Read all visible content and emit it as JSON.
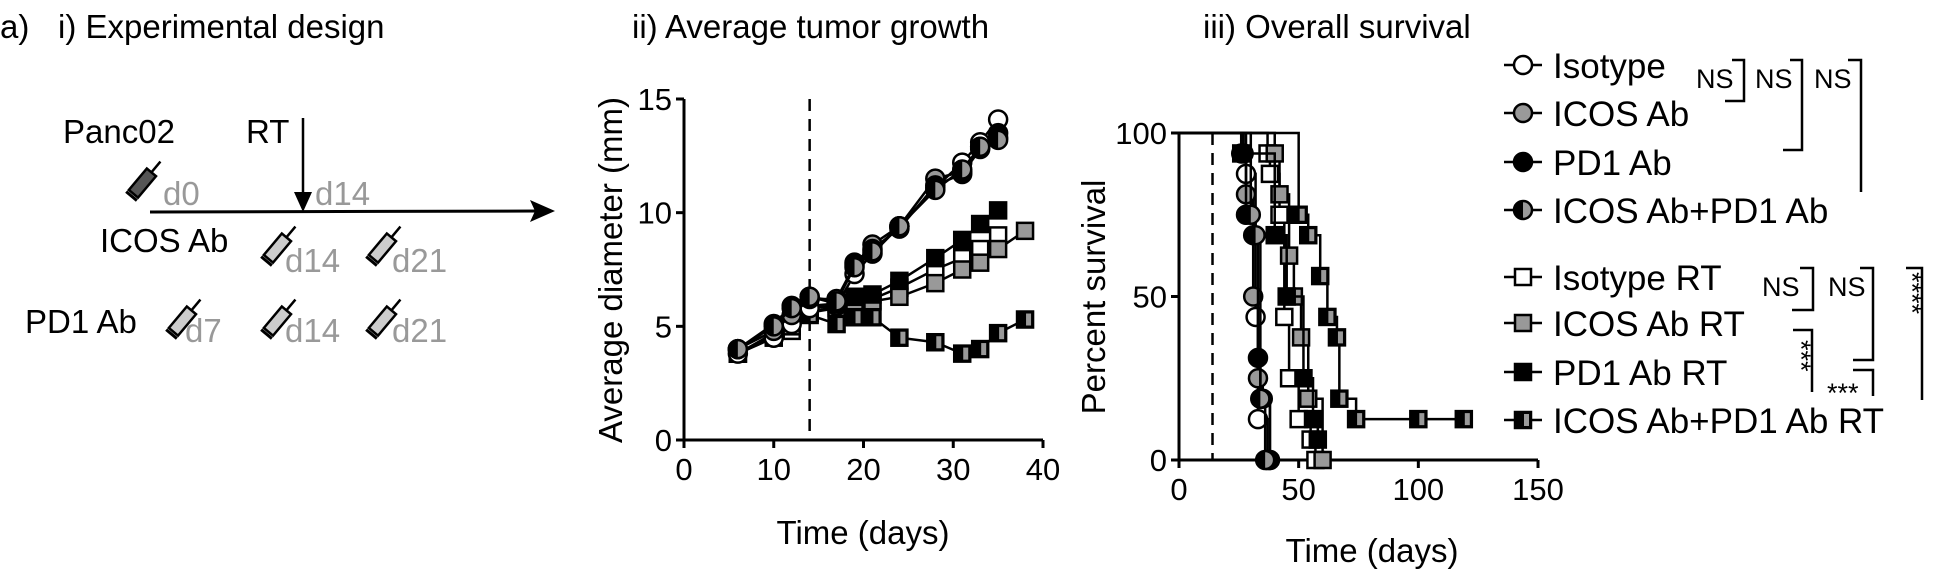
{
  "panel_label": "a)",
  "design": {
    "title": "i) Experimental design",
    "panc02": "Panc02",
    "rt": "RT",
    "d0": "d0",
    "d14_rt": "d14",
    "icos_label": "ICOS Ab",
    "icos_days": [
      "d14",
      "d21"
    ],
    "pd1_label": "PD1 Ab",
    "pd1_days": [
      "d7",
      "d14",
      "d21"
    ]
  },
  "legend": {
    "items": [
      "Isotype",
      "ICOS Ab",
      "PD1 Ab",
      "ICOS Ab+PD1 Ab",
      "Isotype RT",
      "ICOS Ab RT",
      "PD1 Ab RT",
      "ICOS Ab+PD1 Ab RT"
    ],
    "sig_top": [
      "NS",
      "NS",
      "NS"
    ],
    "sig_bottom": [
      "NS",
      "NS",
      "****",
      "***",
      "***"
    ]
  },
  "colors": {
    "gray": "#999999",
    "black": "#000000",
    "white": "#ffffff"
  },
  "chart_data": [
    {
      "type": "line",
      "title": "ii) Average tumor growth",
      "xlabel": "Time (days)",
      "ylabel": "Average diameter (mm)",
      "xlim": [
        0,
        40
      ],
      "ylim": [
        0,
        15
      ],
      "xticks": [
        "0",
        "10",
        "20",
        "30",
        "40"
      ],
      "yticks": [
        "0",
        "5",
        "10",
        "15"
      ],
      "vline_day": 14,
      "series": [
        {
          "name": "Isotype",
          "x": [
            6,
            10,
            12,
            14,
            17,
            19,
            21,
            24,
            28,
            31,
            33,
            35
          ],
          "values": [
            3.8,
            4.5,
            5.1,
            5.8,
            5.9,
            7.3,
            8.2,
            9.4,
            11.1,
            12.2,
            13.1,
            14.1
          ]
        },
        {
          "name": "ICOS Ab",
          "x": [
            6,
            10,
            12,
            14,
            17,
            19,
            21,
            24,
            28,
            31,
            33,
            35
          ],
          "values": [
            4.0,
            4.8,
            5.5,
            6.2,
            6.2,
            7.7,
            8.6,
            9.4,
            11.5,
            11.8,
            12.9,
            13.3
          ]
        },
        {
          "name": "PD1 Ab",
          "x": [
            6,
            10,
            12,
            14,
            17,
            19,
            21,
            24,
            28,
            31,
            33,
            35
          ],
          "values": [
            4.0,
            5.1,
            5.9,
            6.3,
            6.0,
            7.8,
            8.4,
            9.3,
            11.2,
            11.7,
            12.8,
            13.5
          ]
        },
        {
          "name": "ICOS Ab+PD1 Ab",
          "x": [
            6,
            10,
            12,
            14,
            17,
            19,
            21,
            24,
            28,
            31,
            33,
            35
          ],
          "values": [
            4.0,
            5.0,
            5.8,
            6.3,
            6.1,
            7.6,
            8.3,
            9.4,
            11.0,
            11.9,
            12.9,
            13.2
          ]
        },
        {
          "name": "Isotype RT",
          "x": [
            6,
            10,
            12,
            14,
            17,
            19,
            21,
            24,
            28,
            31,
            33,
            35
          ],
          "values": [
            3.8,
            4.5,
            4.8,
            5.6,
            5.9,
            6.1,
            6.2,
            6.7,
            7.5,
            8.0,
            8.4,
            9.0
          ]
        },
        {
          "name": "ICOS Ab RT",
          "x": [
            6,
            10,
            12,
            14,
            17,
            19,
            21,
            24,
            28,
            31,
            33,
            35,
            38
          ],
          "values": [
            3.8,
            4.6,
            5.0,
            5.6,
            5.8,
            6.0,
            6.1,
            6.3,
            6.9,
            7.5,
            7.8,
            8.4,
            9.2
          ]
        },
        {
          "name": "PD1 Ab RT",
          "x": [
            6,
            10,
            12,
            14,
            17,
            19,
            21,
            24,
            28,
            31,
            33,
            35
          ],
          "values": [
            3.8,
            4.7,
            5.3,
            5.9,
            6.0,
            6.3,
            6.4,
            7.0,
            8.0,
            8.8,
            9.5,
            10.1
          ]
        },
        {
          "name": "ICOS Ab+PD1 Ab RT",
          "x": [
            6,
            10,
            12,
            14,
            17,
            19,
            21,
            24,
            28,
            31,
            33,
            35,
            38
          ],
          "values": [
            3.8,
            4.6,
            5.2,
            5.5,
            5.1,
            5.4,
            5.4,
            4.5,
            4.3,
            3.8,
            4.0,
            4.7,
            5.3
          ]
        }
      ]
    },
    {
      "type": "line",
      "title": "iii) Overall survival",
      "xlabel": "Time (days)",
      "ylabel": "Percent survival",
      "xlim": [
        0,
        150
      ],
      "ylim": [
        0,
        100
      ],
      "xticks": [
        "0",
        "50",
        "100",
        "150"
      ],
      "yticks": [
        "0",
        "50",
        "100"
      ],
      "vline_day": 14,
      "series": [
        {
          "name": "Isotype",
          "x": [
            0,
            28,
            32,
            33,
            37
          ],
          "values": [
            100,
            87.5,
            43.75,
            12.5,
            0
          ]
        },
        {
          "name": "ICOS Ab",
          "x": [
            0,
            27,
            28,
            31,
            33,
            35,
            38
          ],
          "values": [
            100,
            93.75,
            81.25,
            50,
            25,
            18.75,
            0
          ]
        },
        {
          "name": "PD1 Ab",
          "x": [
            0,
            26,
            28,
            31,
            33,
            34,
            38
          ],
          "values": [
            100,
            93.75,
            75,
            68.75,
            31.25,
            18.75,
            0
          ]
        },
        {
          "name": "ICOS Ab+PD1 Ab",
          "x": [
            0,
            30,
            32,
            34,
            36
          ],
          "values": [
            100,
            75,
            68.75,
            18.75,
            0
          ]
        },
        {
          "name": "Isotype RT",
          "x": [
            0,
            37,
            38,
            42,
            44,
            46,
            50,
            55,
            57
          ],
          "values": [
            100,
            93.75,
            87.5,
            75,
            43.75,
            25,
            12.5,
            6.25,
            0
          ]
        },
        {
          "name": "ICOS Ab RT",
          "x": [
            0,
            40,
            42,
            46,
            48,
            51,
            54,
            60
          ],
          "values": [
            100,
            93.75,
            81.25,
            62.5,
            50,
            37.5,
            18.75,
            0
          ]
        },
        {
          "name": "PD1 Ab RT",
          "x": [
            0,
            26,
            40,
            45,
            52,
            56,
            58
          ],
          "values": [
            100,
            93.75,
            68.75,
            50,
            25,
            12.5,
            6.25
          ]
        },
        {
          "name": "ICOS Ab+PD1 Ab RT",
          "x": [
            0,
            50,
            54,
            59,
            62,
            66,
            67,
            74,
            100,
            119
          ],
          "values": [
            100,
            75,
            68.75,
            56.25,
            43.75,
            37.5,
            18.75,
            12.5,
            12.5,
            12.5
          ]
        }
      ]
    }
  ]
}
